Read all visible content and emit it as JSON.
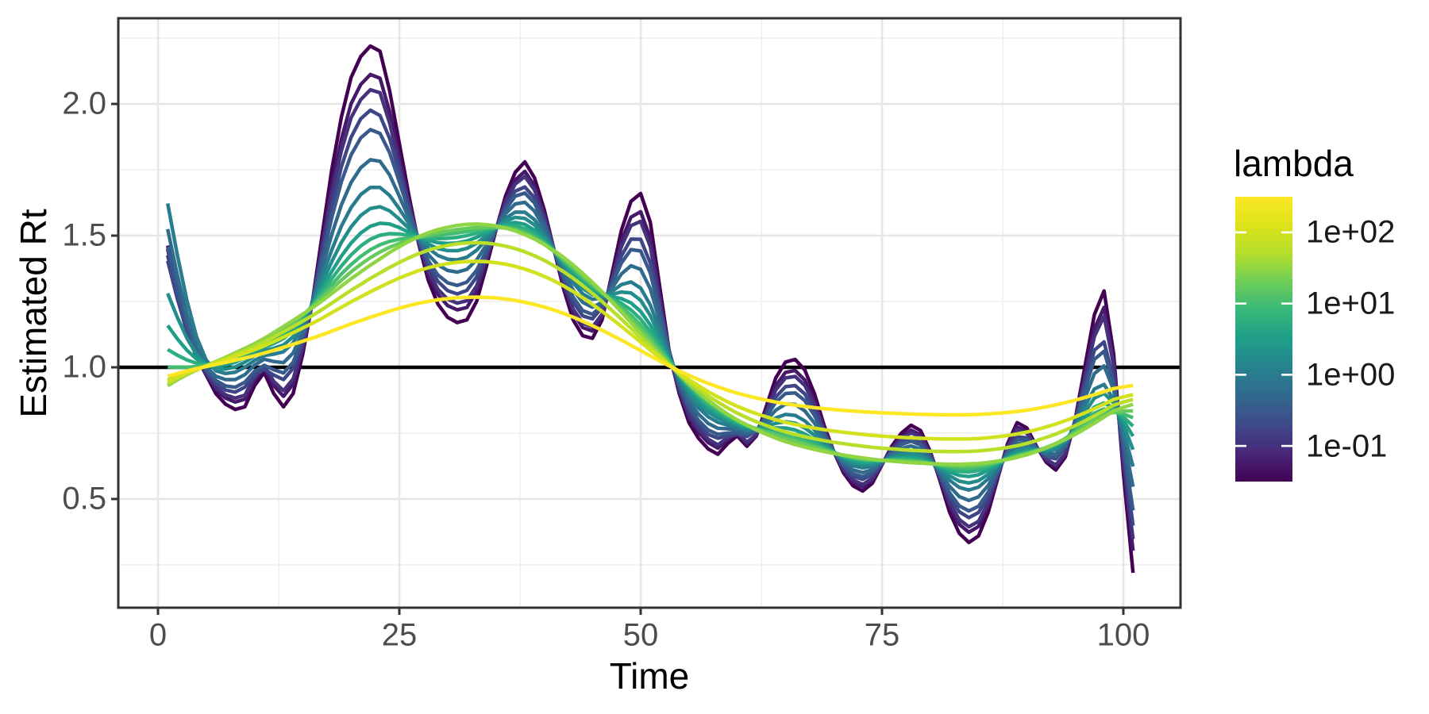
{
  "chart_data": {
    "type": "line",
    "title": "",
    "xlabel": "Time",
    "ylabel": "Estimated Rt",
    "xlim": [
      -4.1,
      105.9
    ],
    "ylim": [
      0.09,
      2.33
    ],
    "grid": "major+minor",
    "legend_position": "right",
    "hline": 1.0,
    "hline_color": "#000000",
    "x_ticks": [
      {
        "value": 0,
        "label": "0"
      },
      {
        "value": 25,
        "label": "25"
      },
      {
        "value": 50,
        "label": "50"
      },
      {
        "value": 75,
        "label": "75"
      },
      {
        "value": 100,
        "label": "100"
      }
    ],
    "y_ticks": [
      {
        "value": 2.0,
        "label": "2.0"
      },
      {
        "value": 1.5,
        "label": "1.5"
      },
      {
        "value": 1.0,
        "label": "1.0"
      },
      {
        "value": 0.5,
        "label": "0.5"
      }
    ],
    "x_start": 1,
    "x_step": 1,
    "wiggly_rt": [
      1.45,
      1.28,
      1.13,
      1.04,
      0.97,
      0.9,
      0.86,
      0.84,
      0.85,
      0.93,
      0.98,
      0.9,
      0.85,
      0.9,
      1.05,
      1.25,
      1.5,
      1.75,
      1.95,
      2.1,
      2.18,
      2.22,
      2.2,
      2.05,
      1.85,
      1.65,
      1.47,
      1.33,
      1.24,
      1.19,
      1.17,
      1.18,
      1.25,
      1.38,
      1.52,
      1.65,
      1.74,
      1.78,
      1.72,
      1.6,
      1.45,
      1.3,
      1.18,
      1.12,
      1.11,
      1.18,
      1.35,
      1.52,
      1.63,
      1.66,
      1.55,
      1.3,
      1.05,
      0.9,
      0.79,
      0.73,
      0.69,
      0.67,
      0.71,
      0.74,
      0.7,
      0.74,
      0.85,
      0.96,
      1.02,
      1.03,
      0.99,
      0.9,
      0.78,
      0.68,
      0.6,
      0.55,
      0.53,
      0.56,
      0.63,
      0.7,
      0.75,
      0.78,
      0.76,
      0.68,
      0.57,
      0.45,
      0.37,
      0.335,
      0.36,
      0.45,
      0.58,
      0.71,
      0.79,
      0.77,
      0.7,
      0.64,
      0.61,
      0.66,
      0.8,
      1.0,
      1.2,
      1.29,
      1.05,
      0.6,
      0.22
    ],
    "trend_rt": [
      0.93,
      0.952,
      0.972,
      0.99,
      1.006,
      1.022,
      1.038,
      1.055,
      1.072,
      1.09,
      1.11,
      1.132,
      1.155,
      1.178,
      1.202,
      1.226,
      1.252,
      1.28,
      1.308,
      1.336,
      1.362,
      1.388,
      1.412,
      1.436,
      1.458,
      1.478,
      1.496,
      1.511,
      1.523,
      1.532,
      1.539,
      1.543,
      1.544,
      1.542,
      1.537,
      1.529,
      1.518,
      1.504,
      1.487,
      1.467,
      1.444,
      1.418,
      1.389,
      1.357,
      1.323,
      1.287,
      1.249,
      1.21,
      1.17,
      1.129,
      1.088,
      1.048,
      1.009,
      0.972,
      0.937,
      0.905,
      0.875,
      0.848,
      0.823,
      0.8,
      0.78,
      0.762,
      0.746,
      0.731,
      0.718,
      0.707,
      0.697,
      0.688,
      0.68,
      0.673,
      0.667,
      0.661,
      0.656,
      0.651,
      0.647,
      0.644,
      0.641,
      0.638,
      0.636,
      0.634,
      0.633,
      0.632,
      0.632,
      0.633,
      0.635,
      0.639,
      0.644,
      0.65,
      0.658,
      0.668,
      0.68,
      0.694,
      0.709,
      0.726,
      0.745,
      0.766,
      0.788,
      0.811,
      0.835,
      0.848,
      0.86
    ],
    "series": [
      {
        "lambda": 0.0316,
        "trend_amp": 1.0,
        "wiggle_amp": 1.0,
        "smooth_passes": 0,
        "start_boost": 0.0
      },
      {
        "lambda": 0.0562,
        "trend_amp": 1.0,
        "wiggle_amp": 0.87,
        "smooth_passes": 0,
        "start_boost": 0.08
      },
      {
        "lambda": 0.1,
        "trend_amp": 1.0,
        "wiggle_amp": 0.8,
        "smooth_passes": 0,
        "start_boost": 0.08
      },
      {
        "lambda": 0.178,
        "trend_amp": 1.0,
        "wiggle_amp": 0.72,
        "smooth_passes": 1,
        "start_boost": 0.1
      },
      {
        "lambda": 0.316,
        "trend_amp": 1.0,
        "wiggle_amp": 0.63,
        "smooth_passes": 1,
        "start_boost": 0.2
      },
      {
        "lambda": 0.562,
        "trend_amp": 1.0,
        "wiggle_amp": 0.49,
        "smooth_passes": 1,
        "start_boost": 0.34
      },
      {
        "lambda": 1.0,
        "trend_amp": 1.0,
        "wiggle_amp": 0.37,
        "smooth_passes": 2,
        "start_boost": 0.5
      },
      {
        "lambda": 1.78,
        "trend_amp": 1.0,
        "wiggle_amp": 0.27,
        "smooth_passes": 2,
        "start_boost": 0.21
      },
      {
        "lambda": 3.16,
        "trend_amp": 1.0,
        "wiggle_amp": 0.19,
        "smooth_passes": 3,
        "start_boost": 0.13
      },
      {
        "lambda": 5.62,
        "trend_amp": 1.0,
        "wiggle_amp": 0.13,
        "smooth_passes": 4,
        "start_boost": 0.07
      },
      {
        "lambda": 10,
        "trend_amp": 1.0,
        "wiggle_amp": 0.08,
        "smooth_passes": 5,
        "start_boost": 0.03
      },
      {
        "lambda": 17.8,
        "trend_amp": 1.0,
        "wiggle_amp": 0.04,
        "smooth_passes": 5,
        "start_boost": 0.0
      },
      {
        "lambda": 31.6,
        "trend_amp": 1.0,
        "wiggle_amp": 0.0,
        "smooth_passes": 0,
        "start_boost": 0.0
      },
      {
        "lambda": 56.2,
        "trend_amp": 0.87,
        "wiggle_amp": 0.0,
        "smooth_passes": 0,
        "start_boost": 0.0
      },
      {
        "lambda": 100,
        "trend_amp": 0.74,
        "wiggle_amp": 0.0,
        "smooth_passes": 0,
        "start_boost": 0.0
      },
      {
        "lambda": 316,
        "trend_amp": 0.49,
        "wiggle_amp": 0.0,
        "smooth_passes": 0,
        "start_boost": 0.0
      }
    ],
    "line_width": 4.5
  },
  "legend": {
    "title": "lambda",
    "bar_top_value": 316,
    "bar_bottom_value": 0.0316,
    "log_range": [
      -1.5,
      2.5
    ],
    "ticks": [
      {
        "value": 100,
        "label": "1e+02"
      },
      {
        "value": 10,
        "label": "1e+01"
      },
      {
        "value": 1,
        "label": "1e+00"
      },
      {
        "value": 0.1,
        "label": "1e-01"
      }
    ]
  },
  "colors": {
    "viridis_anchors": [
      "#440154",
      "#482878",
      "#3E4A89",
      "#31688E",
      "#26828E",
      "#1F9E89",
      "#35B779",
      "#6DCD59",
      "#B4DE2C",
      "#DCE319",
      "#FDE725"
    ],
    "grid_major": "#E6E6E6",
    "grid_minor": "#F0F0F0",
    "panel_border": "#333333",
    "tick_mark": "#333333",
    "tick_text": "#4d4d4d",
    "title_text": "#000000",
    "background": "#ffffff"
  }
}
